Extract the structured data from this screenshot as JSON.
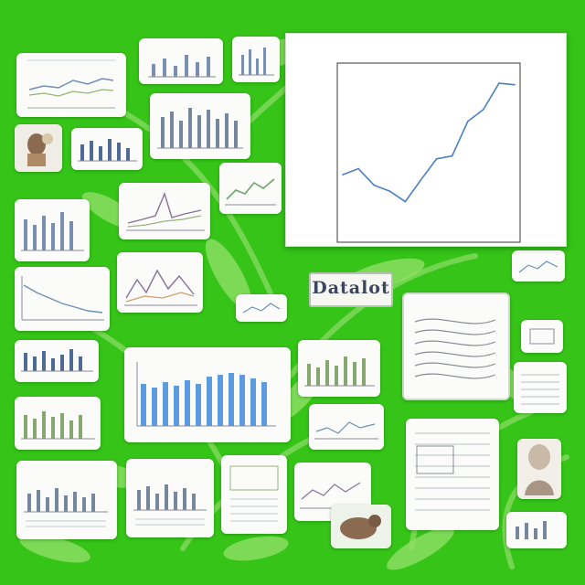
{
  "collage": {
    "background_color": "#35c417",
    "foliage_color": "#7fd95a",
    "card_color": "#fbfcfa"
  },
  "main_chart": {
    "caption": "",
    "footer_text": ""
  },
  "sign": {
    "text": "Datalot"
  },
  "chart_data": {
    "type": "line",
    "title": "",
    "xlabel": "",
    "ylabel": "",
    "x": [
      0,
      1,
      2,
      3,
      4,
      5,
      6,
      7,
      8,
      9,
      10,
      11
    ],
    "y": [
      5.6,
      6.4,
      4.2,
      3.4,
      2.0,
      4.9,
      7.7,
      8.1,
      12.7,
      14.3,
      17.8,
      17.6
    ],
    "ylim": [
      0,
      20
    ],
    "line_color": "#4a7fc3",
    "grid": false
  }
}
